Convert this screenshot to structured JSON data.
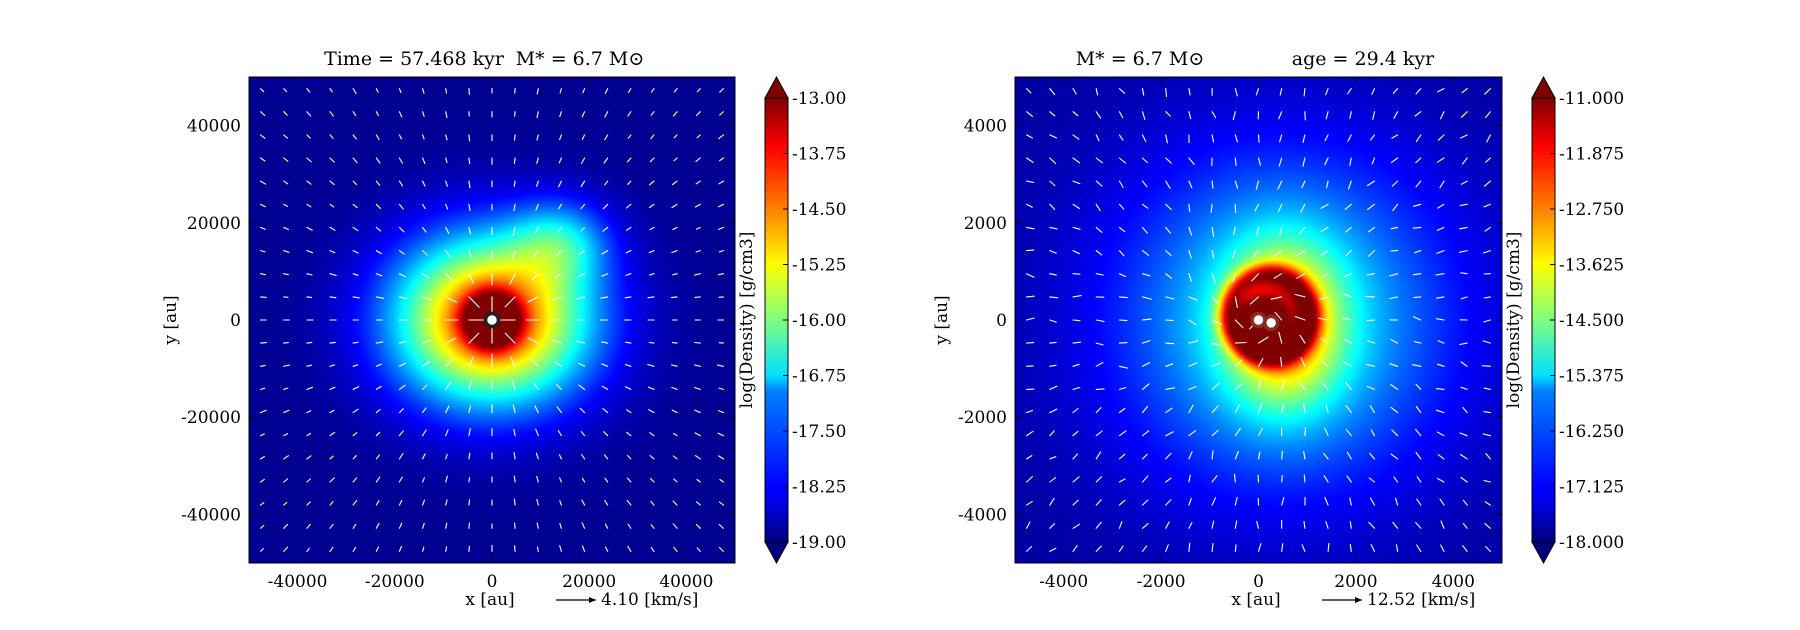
{
  "figure": {
    "colors": {
      "arrow": "#ffffff",
      "frame": "#000000",
      "star_fill": "#ffffff",
      "star_ring_dark": "#222222",
      "star_ring_red": "#8b2a20"
    }
  },
  "chart_data": [
    {
      "type": "heatmap",
      "subtype": "density-map-with-velocity-quiver",
      "title": "Time = 57.468 kyr    M$_*$ = 6.7 M$_\\odot$",
      "title_parts": {
        "time": "Time = 57.468 kyr",
        "mass": "M* = 6.7 M⊙"
      },
      "xlabel": "x [au]",
      "ylabel": "y [au]",
      "xlim": [
        -50000,
        50000
      ],
      "ylim": [
        -50000,
        50000
      ],
      "xticks": [
        -40000,
        -20000,
        0,
        20000,
        40000
      ],
      "yticks": [
        -40000,
        -20000,
        0,
        20000,
        40000
      ],
      "xtick_labels": [
        "-40000",
        "-20000",
        "0",
        "20000",
        "40000"
      ],
      "ytick_labels": [
        "-40000",
        "-20000",
        "0",
        "20000",
        "40000"
      ],
      "colorbar": {
        "label": "log(Density) [g/cm3]",
        "min": -19.0,
        "max": -13.0,
        "ticks": [
          -19.0,
          -18.25,
          -17.5,
          -16.75,
          -16.0,
          -15.25,
          -14.5,
          -13.75,
          -13.0
        ],
        "tick_labels": [
          "-19.00",
          "-18.25",
          "-17.50",
          "-16.75",
          "-16.00",
          "-15.25",
          "-14.50",
          "-13.75",
          "-13.00"
        ],
        "extend": "both",
        "colormap": "jet"
      },
      "quiver_key": {
        "label": "4.10 [km/s]",
        "value": 4.1,
        "unit": "km/s"
      },
      "background_density": -18.9,
      "density_blobs": [
        {
          "x": 0,
          "y": 0,
          "sigma_x": 14000,
          "sigma_y": 12000,
          "amp": 0.85
        },
        {
          "x": 0,
          "y": 0,
          "sigma_x": 3500,
          "sigma_y": 3500,
          "amp": 0.8
        },
        {
          "x": 14000,
          "y": 16000,
          "sigma_x": 7000,
          "sigma_y": 6000,
          "amp": 0.25
        }
      ],
      "velocity_field": {
        "pattern": "radial-infall",
        "center": [
          0,
          0
        ]
      },
      "stars": [
        {
          "x": 0,
          "y": 0,
          "ring": "dark"
        }
      ]
    },
    {
      "type": "heatmap",
      "subtype": "density-map-with-velocity-quiver",
      "title": "M$_*$ = 6.7 M$_\\odot$        age = 29.4 kyr",
      "title_parts": {
        "mass": "M* = 6.7 M⊙",
        "age": "age = 29.4 kyr"
      },
      "xlabel": "x [au]",
      "ylabel": "y [au]",
      "xlim": [
        -5000,
        5000
      ],
      "ylim": [
        -5000,
        5000
      ],
      "xticks": [
        -4000,
        -2000,
        0,
        2000,
        4000
      ],
      "yticks": [
        -4000,
        -2000,
        0,
        2000,
        4000
      ],
      "xtick_labels": [
        "-4000",
        "-2000",
        "0",
        "2000",
        "4000"
      ],
      "ytick_labels": [
        "-4000",
        "-2000",
        "0",
        "2000",
        "4000"
      ],
      "colorbar": {
        "label": "log(Density) [g/cm3]",
        "min": -18.0,
        "max": -11.0,
        "ticks": [
          -18.0,
          -17.125,
          -16.25,
          -15.375,
          -14.5,
          -13.625,
          -12.75,
          -11.875,
          -11.0
        ],
        "tick_labels": [
          "-18.000",
          "-17.125",
          "-16.250",
          "-15.375",
          "-14.500",
          "-13.625",
          "-12.750",
          "-11.875",
          "-11.000"
        ],
        "extend": "both",
        "colormap": "jet"
      },
      "quiver_key": {
        "label": "12.52 [km/s]",
        "value": 12.52,
        "unit": "km/s"
      },
      "background_density": -17.8,
      "density_blobs": [
        {
          "x": 500,
          "y": 0,
          "sigma_x": 2400,
          "sigma_y": 2400,
          "amp": 0.35
        },
        {
          "x": 500,
          "y": -100,
          "sigma_x": 800,
          "sigma_y": 1100,
          "amp": 0.5
        },
        {
          "x": 0,
          "y": 0,
          "sigma_x": 350,
          "sigma_y": 350,
          "amp": 0.55
        }
      ],
      "density_spiral": {
        "center": [
          0,
          0
        ],
        "radius": 1100,
        "amp": 0.35
      },
      "velocity_field": {
        "pattern": "infall-with-rotation",
        "center": [
          0,
          0
        ]
      },
      "stars": [
        {
          "x": 0,
          "y": 0,
          "ring": "red"
        },
        {
          "x": 260,
          "y": -60,
          "ring": "red"
        }
      ]
    }
  ]
}
